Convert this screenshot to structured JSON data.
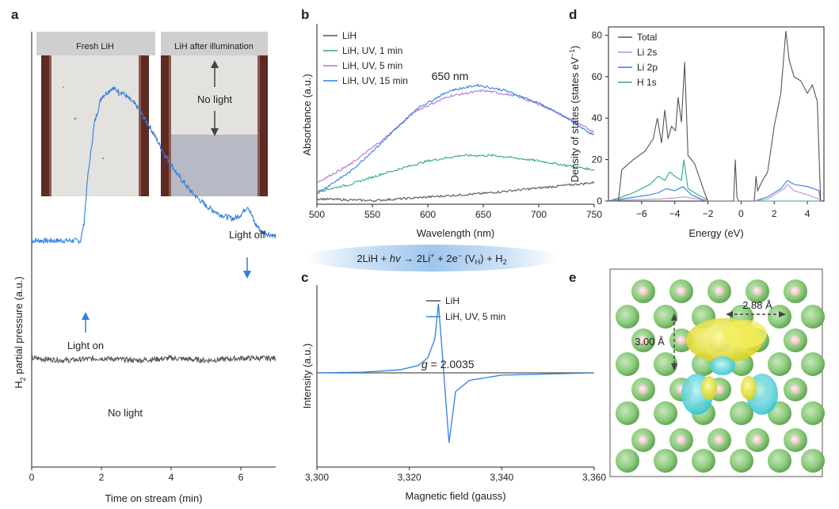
{
  "panels": {
    "a": "a",
    "b": "b",
    "c": "c",
    "d": "d",
    "e": "e"
  },
  "photos": {
    "fresh_label": "Fresh LiH",
    "after_label": "LiH after illumination",
    "no_light_label": "No light"
  },
  "reaction": {
    "left": "2LiH + ",
    "hv": "hv",
    "arrow": " → 2Li",
    "sup": "+",
    "mid": " + 2e",
    "sup2": "−",
    "vacancy_open": " (V",
    "vacancy_sub": "H",
    "vacancy_close": ") + H",
    "h2_sub": "2"
  },
  "chart_data": [
    {
      "id": "a",
      "type": "line",
      "xlabel": "Time on stream (min)",
      "ylabel_main": "H",
      "ylabel_sub": "2",
      "ylabel_rest": " partial pressure (a.u.)",
      "xlim": [
        0,
        7
      ],
      "xticks": [
        0,
        2,
        4,
        6
      ],
      "series": [
        {
          "name": "Light",
          "color": "#2f80e0",
          "x": [
            0,
            1.4,
            1.5,
            1.6,
            1.8,
            2.0,
            2.3,
            2.6,
            3.0,
            3.4,
            3.8,
            4.2,
            4.6,
            5.0,
            5.4,
            5.8,
            6.0,
            6.2,
            6.4,
            6.6,
            7.0
          ],
          "y": [
            0.52,
            0.52,
            0.56,
            0.66,
            0.79,
            0.85,
            0.87,
            0.86,
            0.83,
            0.78,
            0.72,
            0.67,
            0.63,
            0.6,
            0.58,
            0.57,
            0.58,
            0.6,
            0.56,
            0.54,
            0.53
          ]
        },
        {
          "name": "No light",
          "color": "#555555",
          "x": [
            0,
            1,
            2,
            3,
            4,
            5,
            6,
            7
          ],
          "y": [
            0.25,
            0.245,
            0.25,
            0.245,
            0.25,
            0.245,
            0.25,
            0.25
          ]
        }
      ],
      "annotations": {
        "light_on": "Light on",
        "light_off": "Light off",
        "no_light": "No light"
      }
    },
    {
      "id": "b",
      "type": "line",
      "xlabel": "Wavelength (nm)",
      "ylabel": "Absorbance (a.u.)",
      "xlim": [
        500,
        750
      ],
      "xticks": [
        500,
        550,
        600,
        650,
        700,
        750
      ],
      "peak_label": "650 nm",
      "series": [
        {
          "name": "LiH",
          "color": "#555555",
          "x": [
            500,
            550,
            600,
            650,
            700,
            750
          ],
          "y": [
            0.03,
            0.02,
            0.04,
            0.06,
            0.09,
            0.12
          ]
        },
        {
          "name": "LiH, UV, 1 min",
          "color": "#2eaa7a",
          "x": [
            500,
            530,
            560,
            600,
            630,
            660,
            700,
            750
          ],
          "y": [
            0.07,
            0.11,
            0.17,
            0.24,
            0.27,
            0.27,
            0.24,
            0.19
          ]
        },
        {
          "name": "LiH, UV, 5 min",
          "color": "#b474d4",
          "x": [
            500,
            530,
            560,
            590,
            620,
            650,
            680,
            710,
            750
          ],
          "y": [
            0.12,
            0.22,
            0.36,
            0.52,
            0.6,
            0.63,
            0.6,
            0.53,
            0.4
          ]
        },
        {
          "name": "LiH, UV, 15 min",
          "color": "#2f80e0",
          "x": [
            500,
            530,
            560,
            590,
            620,
            645,
            670,
            700,
            730,
            750
          ],
          "y": [
            0.06,
            0.18,
            0.35,
            0.53,
            0.63,
            0.66,
            0.63,
            0.56,
            0.46,
            0.38
          ]
        }
      ]
    },
    {
      "id": "c",
      "type": "line",
      "xlabel": "Magnetic field (gauss)",
      "ylabel": "Intensity (a.u.)",
      "xlim": [
        3300,
        3360
      ],
      "xticks": [
        3300,
        3320,
        3340,
        3360
      ],
      "xtick_labels": [
        "3,300",
        "3,320",
        "3,340",
        "3,360"
      ],
      "ylim": [
        -1,
        1
      ],
      "g_label": "g",
      "g_value": " = 2.0035",
      "series": [
        {
          "name": "LiH",
          "color": "#555555",
          "x": [
            3300,
            3360
          ],
          "y": [
            0,
            0
          ]
        },
        {
          "name": "LiH, UV, 5 min",
          "color": "#2f80e0",
          "x": [
            3300,
            3310,
            3318,
            3322,
            3324,
            3325.5,
            3326.3,
            3327.2,
            3328.0,
            3328.6,
            3330,
            3333,
            3340,
            3360
          ],
          "y": [
            0,
            0.01,
            0.04,
            0.1,
            0.2,
            0.45,
            0.92,
            0.2,
            -0.45,
            -0.93,
            -0.25,
            -0.1,
            -0.03,
            0
          ]
        }
      ]
    },
    {
      "id": "d",
      "type": "line",
      "xlabel": "Energy (eV)",
      "ylabel": "Density of states (states eV",
      "ylabel_sup": "−1",
      "ylabel_close": ")",
      "xlim": [
        -8,
        5
      ],
      "ylim": [
        0,
        84
      ],
      "xticks": [
        -6,
        -4,
        -2,
        0,
        2,
        4
      ],
      "yticks": [
        0,
        20,
        40,
        60,
        80
      ],
      "series": [
        {
          "name": "Total",
          "color": "#555555",
          "x": [
            -8,
            -7.4,
            -7.2,
            -6.5,
            -5.8,
            -5.3,
            -5.05,
            -4.8,
            -4.6,
            -4.4,
            -4.2,
            -3.95,
            -3.8,
            -3.6,
            -3.4,
            -3.2,
            -2.8,
            -2.2,
            -2.0,
            -1.6,
            -0.45,
            -0.35,
            -0.25,
            -0.15,
            0.2,
            0.8,
            0.9,
            1.0,
            1.3,
            1.6,
            2.0,
            2.4,
            2.7,
            2.9,
            3.2,
            3.6,
            4.0,
            4.3,
            4.6,
            4.8
          ],
          "y": [
            0,
            0,
            15,
            20,
            24,
            30,
            40,
            28,
            44,
            30,
            36,
            34,
            50,
            38,
            67,
            22,
            18,
            4,
            0,
            0,
            0,
            20,
            2,
            0,
            0,
            0,
            12,
            5,
            10,
            14,
            36,
            52,
            82,
            68,
            60,
            58,
            52,
            56,
            48,
            0
          ]
        },
        {
          "name": "Li 2s",
          "color": "#c38be0",
          "x": [
            -8,
            -7.2,
            -5,
            -4,
            -3.4,
            -2.6,
            -2.0,
            0.8,
            1.6,
            2.6,
            2.8,
            3.2,
            4.0,
            4.7,
            4.8
          ],
          "y": [
            0,
            0.5,
            1,
            1.5,
            2,
            1,
            0,
            0,
            1,
            6,
            8,
            5,
            3,
            1,
            0
          ]
        },
        {
          "name": "Li 2p",
          "color": "#2f80e0",
          "x": [
            -8,
            -7.2,
            -5.5,
            -5,
            -4.5,
            -4,
            -3.5,
            -3,
            -2.4,
            -2.0,
            0.8,
            1.6,
            2.4,
            2.8,
            3.2,
            4.0,
            4.7,
            4.8
          ],
          "y": [
            0,
            1,
            3,
            4,
            6,
            5,
            7,
            3,
            1,
            0,
            0,
            2,
            6,
            10,
            8,
            7,
            5,
            0
          ]
        },
        {
          "name": "H 1s",
          "color": "#2eaa7a",
          "x": [
            -8,
            -7.2,
            -6.5,
            -5.5,
            -5.0,
            -4.6,
            -4.3,
            -4.0,
            -3.6,
            -3.45,
            -3.2,
            -2.6,
            -2.1,
            -2.0,
            0.8,
            4.8
          ],
          "y": [
            0,
            2,
            4,
            8,
            12,
            10,
            14,
            12,
            10,
            20,
            6,
            3,
            1,
            0,
            0,
            0
          ]
        }
      ]
    }
  ],
  "panel_e": {
    "dim_a": "2.88 Å",
    "dim_b": "3.00 Å"
  }
}
